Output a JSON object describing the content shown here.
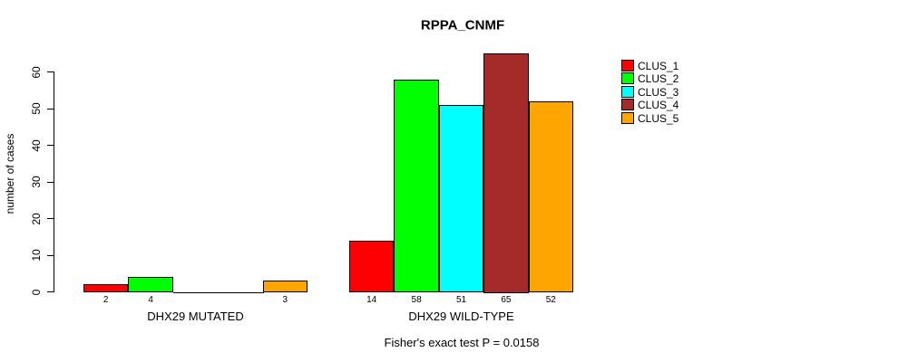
{
  "chart_data": {
    "type": "bar",
    "title": "RPPA_CNMF",
    "ylabel": "number of cases",
    "xlabel": "",
    "yticks": [
      0,
      10,
      20,
      30,
      40,
      50,
      60
    ],
    "ylim": [
      0,
      65
    ],
    "grid": false,
    "legend_position": "right",
    "series": [
      {
        "name": "CLUS_1",
        "color": "#FF0000"
      },
      {
        "name": "CLUS_2",
        "color": "#00FF00"
      },
      {
        "name": "CLUS_3",
        "color": "#00FFFF"
      },
      {
        "name": "CLUS_4",
        "color": "#A52A2A"
      },
      {
        "name": "CLUS_5",
        "color": "#FFA500"
      }
    ],
    "groups": [
      {
        "label": "DHX29 MUTATED",
        "values": [
          2,
          4,
          0,
          0,
          3
        ],
        "bar_labels": [
          "2",
          "4",
          null,
          null,
          "3"
        ]
      },
      {
        "label": "DHX29 WILD-TYPE",
        "values": [
          14,
          58,
          51,
          65,
          52
        ],
        "bar_labels": [
          "14",
          "58",
          "51",
          "65",
          "52"
        ]
      }
    ],
    "footnote": "Fisher's exact test P = 0.0158"
  }
}
